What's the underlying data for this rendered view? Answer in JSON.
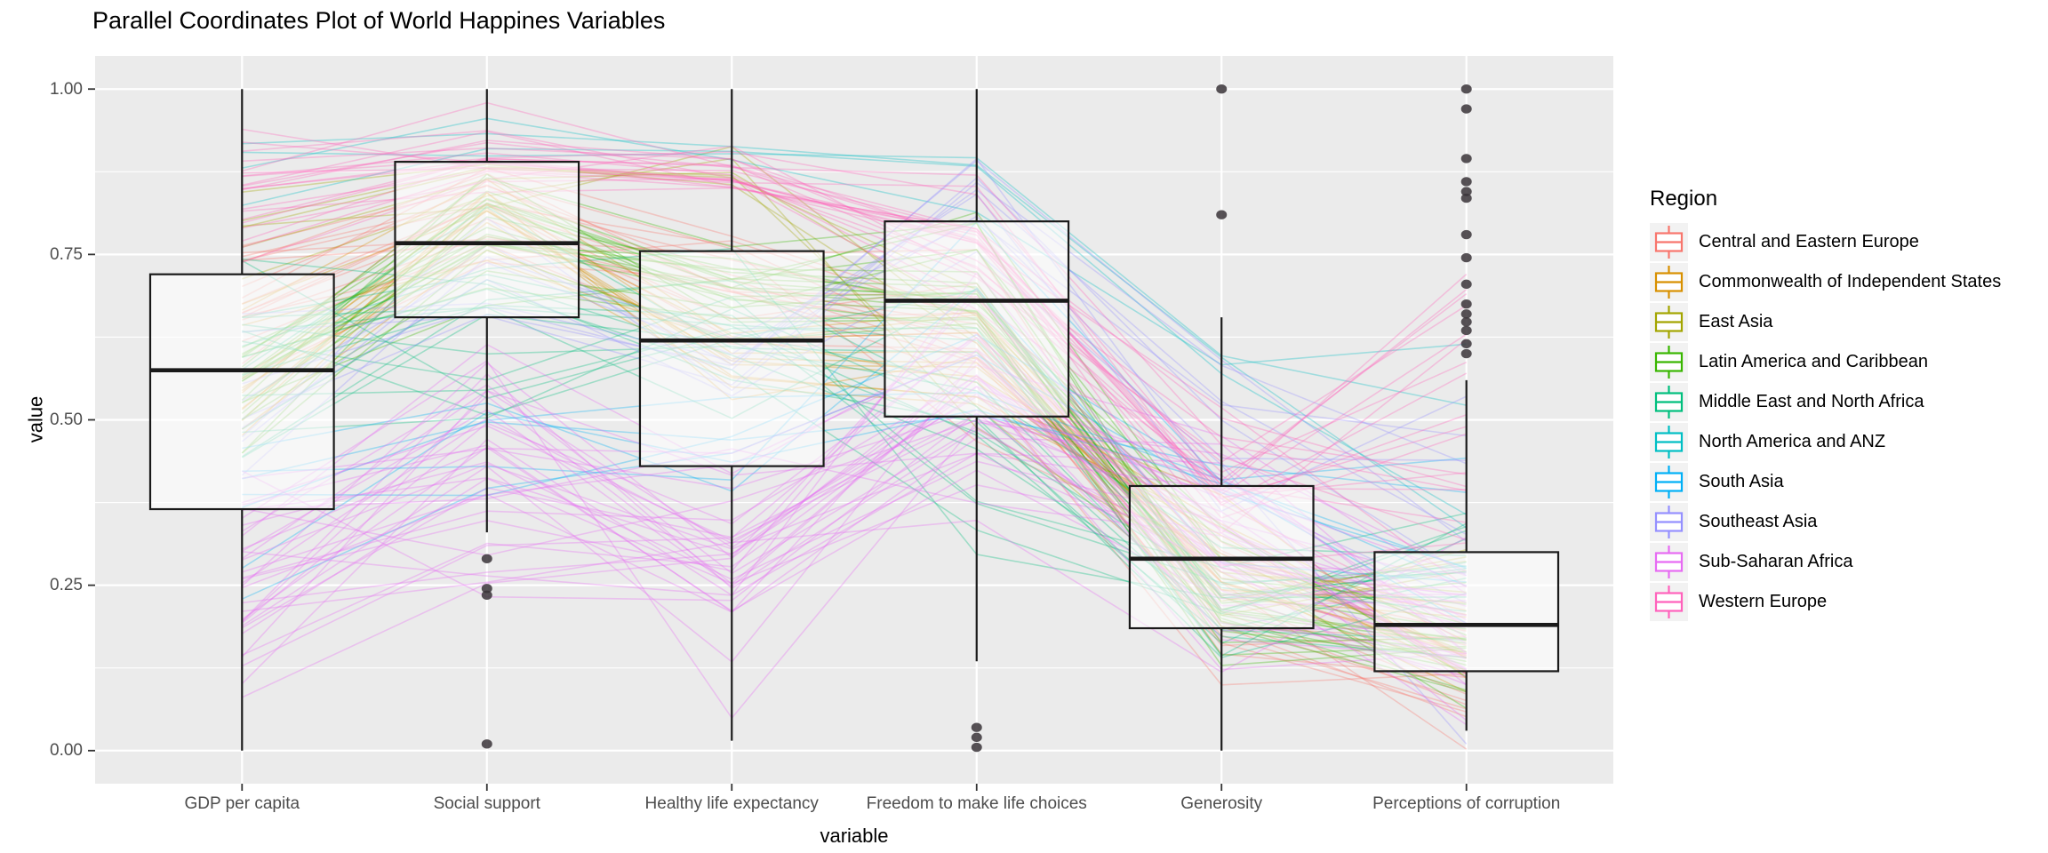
{
  "title": "Parallel Coordinates Plot of World Happines Variables",
  "axes": {
    "x_title": "variable",
    "y_title": "value",
    "y_ticks": [
      {
        "label": "1.00",
        "value": 1.0
      },
      {
        "label": "0.75",
        "value": 0.75
      },
      {
        "label": "0.50",
        "value": 0.5
      },
      {
        "label": "0.25",
        "value": 0.25
      },
      {
        "label": "0.00",
        "value": 0.0
      }
    ]
  },
  "legend": {
    "title": "Region",
    "entries": [
      {
        "label": "Central and Eastern Europe",
        "color": "#F8766D"
      },
      {
        "label": "Commonwealth of Independent States",
        "color": "#D89000"
      },
      {
        "label": "East Asia",
        "color": "#A3A500"
      },
      {
        "label": "Latin America and Caribbean",
        "color": "#39B600"
      },
      {
        "label": "Middle East and North Africa",
        "color": "#00BF7D"
      },
      {
        "label": "North America and ANZ",
        "color": "#00BFC4"
      },
      {
        "label": "South Asia",
        "color": "#00B0F6"
      },
      {
        "label": "Southeast Asia",
        "color": "#9590FF"
      },
      {
        "label": "Sub-Saharan Africa",
        "color": "#E76BF3"
      },
      {
        "label": "Western Europe",
        "color": "#FF62BC"
      }
    ]
  },
  "chart_data": {
    "type": "parallel-coordinates-with-boxplots",
    "title": "Parallel Coordinates Plot of World Happines Variables",
    "xlabel": "variable",
    "ylabel": "value",
    "ylim": [
      0,
      1
    ],
    "grid": "major-and-minor-white-on-grey",
    "legend_position": "right",
    "categories": [
      "GDP per capita",
      "Social support",
      "Healthy life expectancy",
      "Freedom to make life choices",
      "Generosity",
      "Perceptions of corruption"
    ],
    "boxes": [
      {
        "variable": "GDP per capita",
        "whisker_min": 0.0,
        "q1": 0.365,
        "median": 0.575,
        "q3": 0.72,
        "whisker_max": 1.0,
        "outliers": []
      },
      {
        "variable": "Social support",
        "whisker_min": 0.33,
        "q1": 0.655,
        "median": 0.767,
        "q3": 0.89,
        "whisker_max": 1.0,
        "outliers": [
          0.29,
          0.245,
          0.235,
          0.01
        ]
      },
      {
        "variable": "Healthy life expectancy",
        "whisker_min": 0.015,
        "q1": 0.43,
        "median": 0.62,
        "q3": 0.755,
        "whisker_max": 1.0,
        "outliers": []
      },
      {
        "variable": "Freedom to make life choices",
        "whisker_min": 0.135,
        "q1": 0.505,
        "median": 0.68,
        "q3": 0.8,
        "whisker_max": 1.0,
        "outliers": [
          0.035,
          0.02,
          0.005
        ]
      },
      {
        "variable": "Generosity",
        "whisker_min": 0.0,
        "q1": 0.185,
        "median": 0.29,
        "q3": 0.4,
        "whisker_max": 0.655,
        "outliers": [
          1.0,
          0.81
        ]
      },
      {
        "variable": "Perceptions of corruption",
        "whisker_min": 0.03,
        "q1": 0.12,
        "median": 0.19,
        "q3": 0.3,
        "whisker_max": 0.56,
        "outliers": [
          1.0,
          0.97,
          0.895,
          0.86,
          0.845,
          0.835,
          0.78,
          0.745,
          0.705,
          0.675,
          0.66,
          0.648,
          0.635,
          0.615,
          0.6
        ]
      }
    ],
    "style": {
      "panel_background": "#EBEBEB",
      "gridline_color": "#FFFFFF",
      "box_stroke": "#1A1A1A",
      "box_fill": "rgba(255,255,255,0.58)",
      "outlier_color": "#3A3438",
      "tick_color": "#333333",
      "tick_label_color": "#4D4D4D"
    }
  }
}
